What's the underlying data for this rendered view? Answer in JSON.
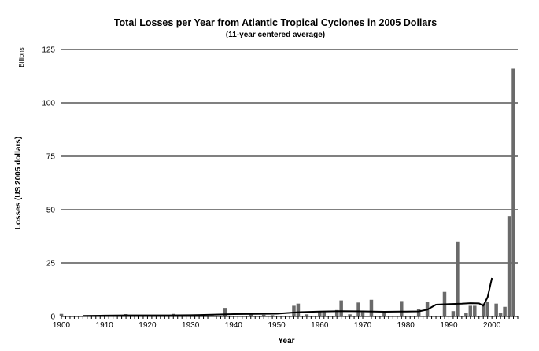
{
  "chart_data": {
    "type": "bar",
    "title": "Total Losses per Year from Atlantic Tropical Cyclones in 2005 Dollars",
    "subtitle": "(11-year centered average)",
    "xlabel": "Year",
    "ylabel": "Losses (US 2005 dollars)",
    "y_unit_label": "Billions",
    "xlim": [
      1900,
      2006
    ],
    "ylim": [
      0,
      125
    ],
    "x_ticks": [
      1900,
      1910,
      1920,
      1930,
      1940,
      1950,
      1960,
      1970,
      1980,
      1990,
      2000
    ],
    "y_ticks": [
      0,
      25,
      50,
      75,
      100,
      125
    ],
    "grid": "horizontal",
    "colors": {
      "bars": "#6a6a6a",
      "average_line": "#000000",
      "gridlines": "#000000"
    },
    "series": [
      {
        "type": "bar",
        "x": [
          1900,
          1906,
          1909,
          1915,
          1919,
          1926,
          1928,
          1932,
          1935,
          1938,
          1944,
          1947,
          1949,
          1954,
          1955,
          1957,
          1960,
          1961,
          1964,
          1965,
          1967,
          1969,
          1970,
          1972,
          1975,
          1979,
          1983,
          1985,
          1989,
          1991,
          1992,
          1994,
          1995,
          1996,
          1998,
          1999,
          2001,
          2002,
          2003,
          2004,
          2005
        ],
        "values": [
          1.2,
          0.3,
          0.6,
          1.1,
          0.4,
          1.2,
          0.4,
          0.3,
          0.5,
          4.0,
          1.5,
          0.8,
          0.6,
          5.0,
          6.0,
          1.0,
          2.5,
          2.0,
          3.0,
          7.5,
          1.0,
          6.5,
          2.0,
          7.8,
          1.5,
          7.2,
          3.5,
          6.8,
          11.5,
          2.5,
          35.0,
          1.5,
          5.0,
          5.0,
          6.0,
          7.0,
          6.0,
          1.5,
          4.5,
          47.0,
          116.0
        ]
      },
      {
        "type": "line",
        "x": [
          1905,
          1910,
          1915,
          1920,
          1925,
          1930,
          1935,
          1940,
          1945,
          1950,
          1955,
          1960,
          1965,
          1970,
          1975,
          1980,
          1983,
          1985,
          1987,
          1990,
          1993,
          1995,
          1997,
          1998,
          1999,
          2000
        ],
        "values": [
          0.3,
          0.4,
          0.5,
          0.5,
          0.5,
          0.6,
          0.8,
          1.1,
          1.2,
          1.3,
          2.0,
          2.3,
          2.5,
          2.4,
          2.2,
          2.3,
          2.4,
          3.2,
          5.5,
          5.8,
          6.0,
          6.2,
          6.1,
          5.0,
          9.0,
          18.0
        ]
      }
    ]
  }
}
